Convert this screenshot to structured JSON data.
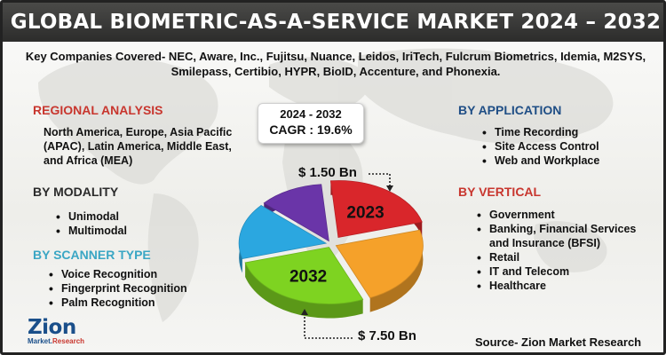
{
  "title": "GLOBAL BIOMETRIC-AS-A-SERVICE MARKET 2024 – 2032",
  "companies": "Key Companies Covered- NEC, Aware, Inc., Fujitsu, Nuance, Leidos, IriTech, Fulcrum Biometrics, Idemia, M2SYS, Smilepass, Certibio, HYPR, BioID, Accenture, and Phonexia.",
  "regional": {
    "heading": "REGIONAL ANALYSIS",
    "text": "North America, Europe, Asia Pacific (APAC), Latin America, Middle East, and Africa (MEA)"
  },
  "modality": {
    "heading": "BY MODALITY",
    "items": [
      "Unimodal",
      "Multimodal"
    ]
  },
  "scanner": {
    "heading": "BY SCANNER TYPE",
    "items": [
      "Voice Recognition",
      "Fingerprint Recognition",
      "Palm Recognition"
    ]
  },
  "application": {
    "heading": "BY APPLICATION",
    "items": [
      "Time Recording",
      "Site Access Control",
      "Web and Workplace"
    ]
  },
  "vertical": {
    "heading": "BY VERTICAL",
    "items": [
      "Government",
      "Banking, Financial Services and Insurance (BFSI)",
      "Retail",
      "IT and Telecom",
      "Healthcare"
    ]
  },
  "cagr": {
    "period": "2024 - 2032",
    "label": "CAGR : 19.6%"
  },
  "colors": {
    "heading_red": "#c8362e",
    "heading_dark": "#2a2a2a",
    "heading_teal": "#3aa6c4",
    "heading_blue": "#1f4e85"
  },
  "chart_data": {
    "type": "pie",
    "title": "",
    "style": "3d exploded",
    "slices": [
      {
        "label": "2023",
        "value": 1.5,
        "value_label": "$ 1.50 Bn",
        "color": "#d9262b"
      },
      {
        "label": "",
        "value": null,
        "color": "#f5a12a"
      },
      {
        "label": "2032",
        "value": 7.5,
        "value_label": "$ 7.50 Bn",
        "color": "#7ed321"
      },
      {
        "label": "",
        "value": null,
        "color": "#2ba7e0"
      },
      {
        "label": "",
        "value": null,
        "color": "#6a35a8"
      }
    ],
    "approx_shares_percent": [
      22,
      23,
      27,
      16,
      12
    ]
  },
  "logo": {
    "brand": "Zion",
    "sub_market": "Market.",
    "sub_research": "Research"
  },
  "source": "Source- Zion Market Research"
}
